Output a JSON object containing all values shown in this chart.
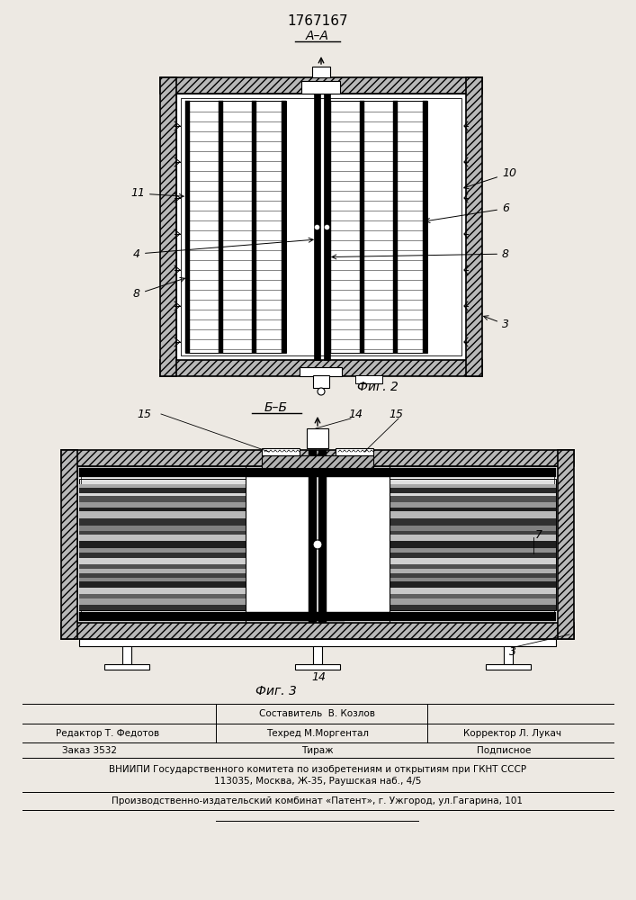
{
  "bg_color": "#ede9e3",
  "title_text": "1767167",
  "fig2_label": "Фиг. 2",
  "fig3_label": "Фиг. 3",
  "section_aa": "A–A",
  "section_bb": "Б–Б",
  "label_11": "11",
  "label_4": "4",
  "label_8_l": "8",
  "label_10": "10",
  "label_6": "6",
  "label_8_r": "8",
  "label_3": "3",
  "label_15a": "15",
  "label_14a": "14",
  "label_15b": "15",
  "label_7": "7",
  "label_14b": "14",
  "label_3b": "3",
  "footer_col1_row1": "Составитель  В. Козлов",
  "footer_col1_row2": "Редактор Т. Федотов",
  "footer_col2_row2": "Техред М.Моргентал",
  "footer_col3_row2": "Корректор Л. Лукач",
  "footer_order": "Заказ 3532",
  "footer_tirazh": "Тираж",
  "footer_podp": "Подписное",
  "footer_vniip": "ВНИИПИ Государственного комитета по изобретениям и открытиям при ГКНТ СССР",
  "footer_addr": "113035, Москва, Ж-35, Раушская наб., 4/5",
  "footer_patent": "Производственно-издательский комбинат «Патент», г. Ужгород, ул.Гагарина, 101"
}
